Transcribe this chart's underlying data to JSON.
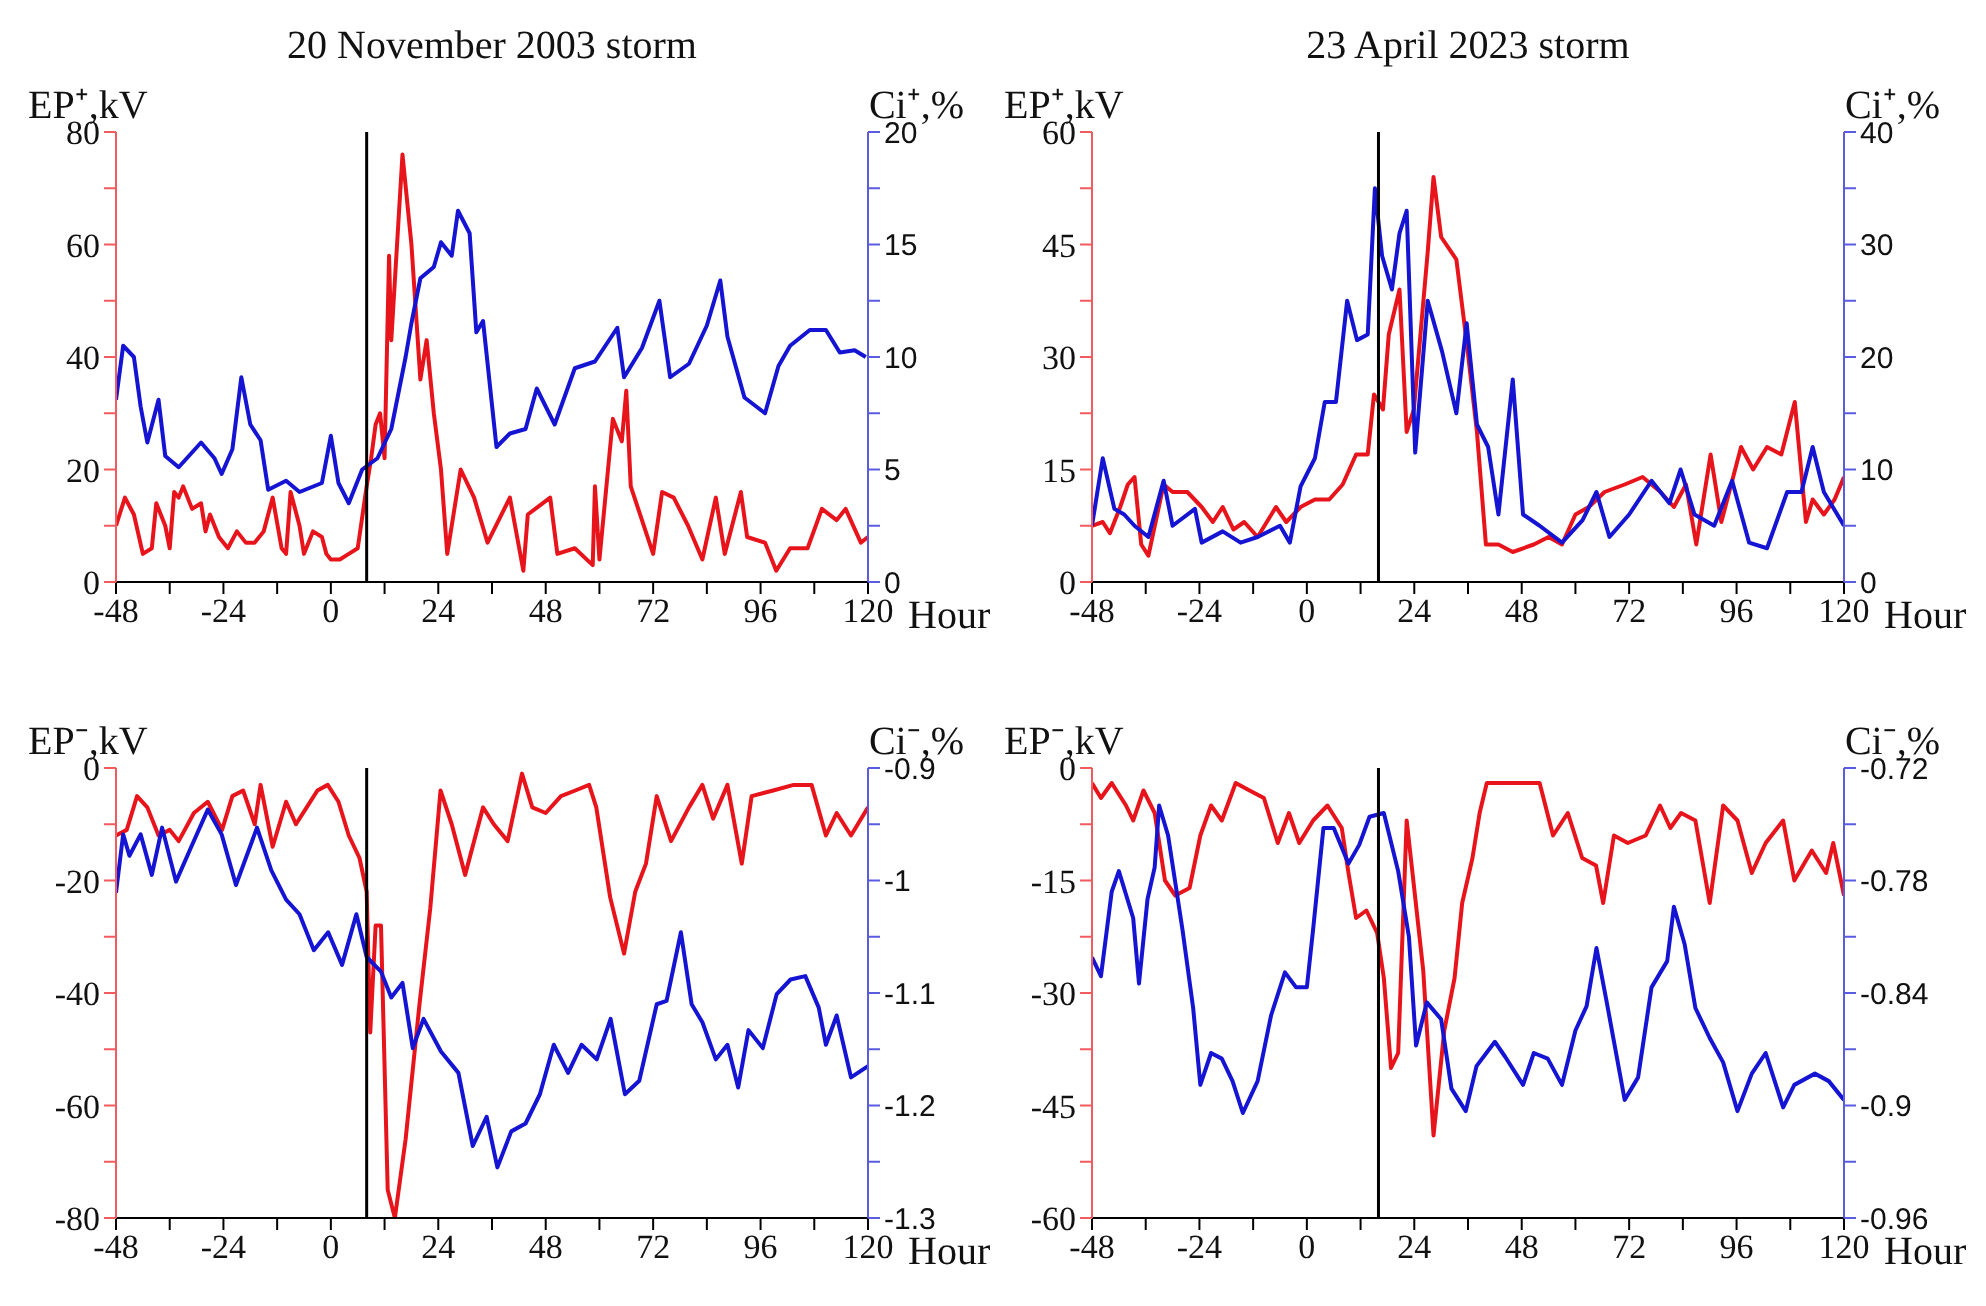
{
  "chart_data": [
    {
      "type": "line",
      "title": "20 November 2003 storm",
      "xlabel": "Hour",
      "ylabel": "EP⁺,kV",
      "y2label": "Ci⁺,%",
      "xlim": [
        -48,
        120
      ],
      "xticks": [
        -48,
        {
          "value": -36,
          "label": null
        },
        -24,
        {
          "value": -12,
          "label": null
        },
        0,
        {
          "value": 12,
          "label": null
        },
        24,
        {
          "value": 36,
          "label": null
        },
        48,
        {
          "value": 60,
          "label": null
        },
        72,
        {
          "value": 84,
          "label": null
        },
        96,
        {
          "value": 108,
          "label": null
        },
        120
      ],
      "ylim": [
        0,
        80
      ],
      "yticks": [
        0,
        {
          "value": 10,
          "label": null
        },
        20,
        {
          "value": 30,
          "label": null
        },
        40,
        {
          "value": 50,
          "label": null
        },
        60,
        {
          "value": 70,
          "label": null
        },
        80
      ],
      "y2lim": [
        0,
        20
      ],
      "y2ticks": [
        0,
        {
          "value": 2.5,
          "label": null
        },
        5,
        {
          "value": 7.5,
          "label": null
        },
        10,
        {
          "value": 12.5,
          "label": null
        },
        15,
        {
          "value": 17.5,
          "label": null
        },
        20
      ],
      "ref_lines": [
        {
          "axis": "x",
          "value": 8,
          "color": "#000000"
        }
      ],
      "series": [
        {
          "color": "#e8141b",
          "x": [
            -48,
            -46,
            -44,
            -42,
            -40,
            -39,
            -37,
            -36,
            -35,
            -34,
            -33,
            -31,
            -29,
            -28,
            -27,
            -25,
            -23,
            -21,
            -19,
            -17,
            -15,
            -13,
            -11,
            -10,
            -9,
            -7,
            -6,
            -4,
            -2,
            -1,
            0,
            2,
            4,
            6,
            8,
            9,
            10,
            11,
            12,
            13,
            13.5,
            16,
            18,
            20,
            21.4,
            23,
            24.6,
            26,
            29,
            32,
            35,
            40,
            43,
            44,
            49,
            50.6,
            54.5,
            58.5,
            59,
            60,
            63,
            65,
            66,
            67,
            72,
            74,
            76.6,
            79.8,
            83,
            86,
            88,
            91.6,
            93,
            97,
            99.5,
            102.6,
            106.5,
            109.7,
            113,
            115,
            118.4,
            120
          ],
          "values": [
            10,
            15,
            12,
            5,
            6,
            14,
            10,
            6,
            16,
            15,
            17,
            13,
            14,
            9,
            12,
            8,
            6,
            9,
            7,
            7,
            9,
            15,
            6,
            5,
            16,
            10,
            5,
            9,
            8,
            5,
            4,
            4,
            5,
            6,
            17,
            22,
            28,
            30,
            22,
            58,
            43,
            76,
            60,
            36,
            43,
            30,
            20,
            5,
            20,
            15,
            7,
            15,
            2,
            12,
            15,
            5,
            6,
            3,
            17,
            4,
            29,
            25,
            34,
            17,
            5,
            16,
            15,
            10,
            4,
            15,
            5,
            16,
            8,
            7,
            2,
            6,
            6,
            13,
            11,
            13,
            7,
            8
          ]
        },
        {
          "color": "#1414d2",
          "axis": "y2",
          "x": [
            -48,
            -46.4,
            -44,
            -42.5,
            -41,
            -38.5,
            -37,
            -34,
            -29,
            -26,
            -24.4,
            -22,
            -20,
            -18,
            -15.7,
            -14,
            -10,
            -7,
            -2,
            0,
            1.7,
            4,
            7,
            10.4,
            13.5,
            16.7,
            18,
            20,
            23,
            24.6,
            27,
            28.4,
            31,
            32.5,
            34,
            37,
            40,
            43.5,
            46,
            50,
            54.5,
            59,
            64,
            65.5,
            69.5,
            73.4,
            75.8,
            80,
            84,
            87,
            88.6,
            92.4,
            97,
            100,
            102.6,
            107,
            110.6,
            113.7,
            117,
            119.5
          ],
          "values": [
            8.1,
            10.5,
            10,
            7.8,
            6.2,
            8.1,
            5.6,
            5.1,
            6.2,
            5.5,
            4.8,
            5.9,
            9.1,
            7,
            6.3,
            4.1,
            4.5,
            4,
            4.4,
            6.5,
            4.4,
            3.5,
            5,
            5.5,
            6.8,
            10,
            11.5,
            13.5,
            14,
            15.1,
            14.5,
            16.5,
            15.5,
            11.1,
            11.6,
            6,
            6.6,
            6.8,
            8.6,
            7,
            9.5,
            9.8,
            11.3,
            9.1,
            10.4,
            12.5,
            9.1,
            9.7,
            11.4,
            13.4,
            10.9,
            8.2,
            7.5,
            9.6,
            10.5,
            11.2,
            11.2,
            10.2,
            10.3,
            10
          ]
        }
      ]
    },
    {
      "type": "line",
      "title": "23 April 2023 storm",
      "xlabel": "Hour",
      "ylabel": "EP⁺,kV",
      "y2label": "Ci⁺,%",
      "xlim": [
        -48,
        120
      ],
      "xticks": [
        -48,
        {
          "value": -36,
          "label": null
        },
        -24,
        {
          "value": -12,
          "label": null
        },
        0,
        {
          "value": 12,
          "label": null
        },
        24,
        {
          "value": 36,
          "label": null
        },
        48,
        {
          "value": 60,
          "label": null
        },
        72,
        {
          "value": 84,
          "label": null
        },
        96,
        {
          "value": 108,
          "label": null
        },
        120
      ],
      "ylim": [
        0,
        60
      ],
      "yticks": [
        0,
        {
          "value": 7.5,
          "label": null
        },
        15,
        {
          "value": 22.5,
          "label": null
        },
        30,
        {
          "value": 37.5,
          "label": null
        },
        45,
        {
          "value": 52.5,
          "label": null
        },
        60
      ],
      "y2lim": [
        0,
        40
      ],
      "y2ticks": [
        0,
        {
          "value": 5,
          "label": null
        },
        10,
        {
          "value": 15,
          "label": null
        },
        20,
        {
          "value": 25,
          "label": null
        },
        30,
        {
          "value": 35,
          "label": null
        },
        40
      ],
      "ref_lines": [
        {
          "axis": "x",
          "value": 16,
          "color": "#000000"
        }
      ],
      "series": [
        {
          "color": "#e8141b",
          "x": [
            -48,
            -45.6,
            -44,
            -41.7,
            -40,
            -38.5,
            -37,
            -35.4,
            -32,
            -30,
            -26.7,
            -23.5,
            -21,
            -18.8,
            -16.4,
            -14,
            -11,
            -6.9,
            -4.6,
            -1.4,
            1.8,
            5,
            8,
            11,
            13.6,
            15,
            17,
            18.3,
            20.7,
            22.3,
            23.9,
            27,
            28.3,
            30,
            33.4,
            35.7,
            38,
            40,
            42.8,
            46,
            50.7,
            54,
            57,
            60,
            63,
            66.5,
            71,
            75,
            79,
            82,
            84.7,
            87,
            90.2,
            92.6,
            97,
            99.7,
            102.8,
            106,
            109,
            111.5,
            113,
            115.5,
            117.9,
            120
          ],
          "values": [
            7.5,
            8,
            6.5,
            10,
            13,
            14,
            5,
            3.5,
            13,
            12,
            12,
            10,
            8,
            10,
            7,
            8,
            6,
            10,
            8,
            10,
            11,
            11,
            13,
            17,
            17,
            25,
            23,
            33,
            39,
            20,
            23,
            44,
            54,
            46,
            43,
            32,
            20,
            5,
            5,
            4,
            5,
            6,
            5,
            9,
            10,
            12,
            13,
            14,
            12,
            10,
            13,
            5,
            17,
            8,
            18,
            15,
            18,
            17,
            24,
            8,
            11,
            9,
            11,
            14
          ]
        },
        {
          "color": "#1414d2",
          "axis": "y2",
          "x": [
            -48,
            -45.6,
            -43,
            -40.8,
            -38.5,
            -35.4,
            -32,
            -30,
            -25,
            -23.5,
            -18.8,
            -14.8,
            -11,
            -6,
            -3.8,
            -1.4,
            1.8,
            4,
            6.5,
            9,
            11.2,
            13.6,
            15.2,
            16.8,
            19,
            20.7,
            22.3,
            24.2,
            27,
            30.2,
            33.4,
            35.7,
            38,
            40.5,
            42.8,
            46,
            48.3,
            52,
            57,
            61.6,
            64.7,
            67.6,
            72,
            77,
            81,
            83.5,
            86.6,
            91,
            95,
            98.8,
            102.8,
            107.3,
            110.5,
            113,
            115.5,
            120
          ],
          "values": [
            5,
            11,
            6.5,
            6,
            5,
            4,
            9,
            5,
            6.5,
            3.5,
            4.5,
            3.5,
            4,
            5,
            3.5,
            8.5,
            11,
            16,
            16,
            25,
            21.5,
            22,
            35,
            29,
            26,
            31,
            33,
            11.5,
            25,
            20.5,
            15,
            23,
            14,
            12,
            6,
            18,
            6,
            5,
            3.5,
            5.5,
            8,
            4,
            6,
            9,
            7,
            10,
            6,
            5,
            9,
            3.5,
            3,
            8,
            8,
            12,
            8,
            5
          ]
        }
      ]
    },
    {
      "type": "line",
      "xlabel": "Hour",
      "ylabel": "EP⁻,kV",
      "y2label": "Ci⁻,%",
      "xlim": [
        -48,
        120
      ],
      "xticks": [
        -48,
        {
          "value": -36,
          "label": null
        },
        -24,
        {
          "value": -12,
          "label": null
        },
        0,
        {
          "value": 12,
          "label": null
        },
        24,
        {
          "value": 36,
          "label": null
        },
        48,
        {
          "value": 60,
          "label": null
        },
        72,
        {
          "value": 84,
          "label": null
        },
        96,
        {
          "value": 108,
          "label": null
        },
        120
      ],
      "ylim": [
        -80,
        0
      ],
      "yticks": [
        -80,
        {
          "value": -70,
          "label": null
        },
        -60,
        {
          "value": -50,
          "label": null
        },
        -40,
        {
          "value": -30,
          "label": null
        },
        -20,
        {
          "value": -10,
          "label": null
        },
        0
      ],
      "y2lim": [
        -1.3,
        -0.9
      ],
      "y2ticks": [
        -1.3,
        {
          "value": -1.25,
          "label": null
        },
        -1.2,
        {
          "value": -1.15,
          "label": null
        },
        -1.1,
        {
          "value": -1.05,
          "label": null
        },
        -1,
        {
          "value": -0.95,
          "label": null
        },
        -0.9
      ],
      "ref_lines": [
        {
          "axis": "x",
          "value": 8,
          "color": "#000000"
        }
      ],
      "series": [
        {
          "color": "#e8141b",
          "x": [
            -48,
            -45.6,
            -43.3,
            -41,
            -38.5,
            -36,
            -34,
            -30.6,
            -27.5,
            -24.3,
            -22,
            -19.6,
            -17,
            -15.7,
            -13,
            -10,
            -7.8,
            -5.4,
            -3,
            -0.7,
            1.7,
            4,
            6.4,
            8,
            8.8,
            10,
            11.2,
            12.7,
            14.3,
            16.7,
            19.8,
            22.2,
            24.5,
            27,
            30,
            34,
            36.4,
            39.5,
            42.7,
            45,
            48,
            51.4,
            54.6,
            57.7,
            59.3,
            62.4,
            65.5,
            68,
            70.4,
            72.8,
            76,
            80,
            83,
            85.4,
            88.6,
            91.8,
            94,
            98.8,
            103.4,
            107.4,
            110.6,
            113,
            116.2,
            120
          ],
          "values": [
            -12,
            -11,
            -5,
            -7,
            -12,
            -11,
            -13,
            -8,
            -6,
            -11,
            -5,
            -4,
            -10,
            -3,
            -14,
            -6,
            -10,
            -7,
            -4,
            -3,
            -6,
            -12,
            -16,
            -22,
            -47,
            -28,
            -28,
            -75,
            -80,
            -66,
            -42,
            -25,
            -4,
            -10,
            -19,
            -7,
            -10,
            -13,
            -1,
            -7,
            -8,
            -5,
            -4,
            -3,
            -7,
            -23,
            -33,
            -22,
            -17,
            -5,
            -13,
            -7,
            -3,
            -9,
            -3,
            -17,
            -5,
            -4,
            -3,
            -3,
            -12,
            -8,
            -12,
            -7
          ]
        },
        {
          "color": "#1414d2",
          "axis": "y2",
          "x": [
            -48,
            -46.4,
            -45,
            -42.5,
            -40,
            -37.7,
            -34.6,
            -31.4,
            -27.5,
            -24.4,
            -21.2,
            -16.5,
            -13.3,
            -10,
            -7,
            -3.8,
            -0.6,
            2.5,
            5.7,
            8,
            11.2,
            13.5,
            16,
            18.3,
            20.7,
            24.6,
            28.5,
            31.7,
            34.8,
            37.2,
            40.3,
            43.5,
            46.7,
            49.8,
            53,
            56,
            59.4,
            62.5,
            65.7,
            68.9,
            72.8,
            75,
            78.2,
            80.6,
            83,
            86,
            88.6,
            91,
            93.3,
            96.5,
            99.6,
            102.7,
            106,
            109,
            110.6,
            113,
            116.2,
            120
          ],
          "values": [
            -1.011,
            -0.959,
            -0.978,
            -0.959,
            -0.995,
            -0.953,
            -1.001,
            -0.972,
            -0.937,
            -0.959,
            -1.004,
            -0.953,
            -0.991,
            -1.017,
            -1.03,
            -1.062,
            -1.046,
            -1.075,
            -1.03,
            -1.068,
            -1.081,
            -1.104,
            -1.091,
            -1.149,
            -1.123,
            -1.152,
            -1.171,
            -1.236,
            -1.21,
            -1.255,
            -1.223,
            -1.216,
            -1.19,
            -1.146,
            -1.171,
            -1.146,
            -1.159,
            -1.123,
            -1.19,
            -1.178,
            -1.11,
            -1.107,
            -1.046,
            -1.11,
            -1.126,
            -1.159,
            -1.146,
            -1.184,
            -1.133,
            -1.149,
            -1.101,
            -1.088,
            -1.085,
            -1.113,
            -1.146,
            -1.12,
            -1.175,
            -1.165
          ]
        }
      ]
    },
    {
      "type": "line",
      "xlabel": "Hour",
      "ylabel": "EP⁻,kV",
      "y2label": "Ci⁻,%",
      "xlim": [
        -48,
        120
      ],
      "xticks": [
        -48,
        {
          "value": -36,
          "label": null
        },
        -24,
        {
          "value": -12,
          "label": null
        },
        0,
        {
          "value": 12,
          "label": null
        },
        24,
        {
          "value": 36,
          "label": null
        },
        48,
        {
          "value": 60,
          "label": null
        },
        72,
        {
          "value": 84,
          "label": null
        },
        96,
        {
          "value": 108,
          "label": null
        },
        120
      ],
      "ylim": [
        -60,
        0
      ],
      "yticks": [
        -60,
        {
          "value": -52.5,
          "label": null
        },
        -45,
        {
          "value": -37.5,
          "label": null
        },
        -30,
        {
          "value": -22.5,
          "label": null
        },
        -15,
        {
          "value": -7.5,
          "label": null
        },
        0
      ],
      "y2lim": [
        -0.96,
        -0.72
      ],
      "y2ticks": [
        -0.96,
        {
          "value": -0.93,
          "label": null
        },
        -0.9,
        {
          "value": -0.87,
          "label": null
        },
        -0.84,
        {
          "value": -0.81,
          "label": null
        },
        -0.78,
        {
          "value": -0.75,
          "label": null
        },
        -0.72
      ],
      "ref_lines": [
        {
          "axis": "x",
          "value": 16,
          "color": "#000000"
        }
      ],
      "series": [
        {
          "color": "#e8141b",
          "x": [
            -48,
            -46,
            -43.6,
            -40.4,
            -38.8,
            -36.5,
            -34,
            -31.7,
            -29.4,
            -26.2,
            -23.8,
            -21.4,
            -19,
            -15.9,
            -12.8,
            -9.6,
            -6.5,
            -4,
            -1.7,
            1.4,
            4.6,
            7.8,
            9.3,
            11,
            13.3,
            15.7,
            17.2,
            18.8,
            20.4,
            22.3,
            23.6,
            26,
            28.3,
            30.7,
            33,
            34.7,
            37,
            38.6,
            40.2,
            44,
            48,
            52,
            55,
            58.3,
            61.5,
            64.6,
            66.2,
            68.6,
            71.7,
            75.7,
            78.9,
            81.2,
            83.6,
            86.8,
            90,
            93,
            96.2,
            99.4,
            102.5,
            106.4,
            108.9,
            112.8,
            116,
            117.6,
            120
          ],
          "values": [
            -2,
            -4,
            -2,
            -5,
            -7,
            -3,
            -6,
            -15,
            -17,
            -16,
            -9,
            -5,
            -7,
            -2,
            -3,
            -4,
            -10,
            -6,
            -10,
            -7,
            -5,
            -8,
            -14,
            -20,
            -19,
            -22,
            -28,
            -40,
            -38,
            -7,
            -14,
            -27,
            -49,
            -35,
            -28,
            -18,
            -12,
            -6,
            -2,
            -2,
            -2,
            -2,
            -9,
            -6,
            -12,
            -13,
            -18,
            -9,
            -10,
            -9,
            -5,
            -8,
            -6,
            -7,
            -18,
            -5,
            -7,
            -14,
            -10,
            -7,
            -15,
            -11,
            -14,
            -10,
            -17
          ]
        },
        {
          "color": "#1414d2",
          "axis": "y2",
          "x": [
            -48,
            -46,
            -43.6,
            -42,
            -38.8,
            -37.5,
            -35.6,
            -34,
            -33,
            -31,
            -27.8,
            -25.4,
            -23.8,
            -21.4,
            -19,
            -16.6,
            -14.3,
            -11,
            -8,
            -4.9,
            -2.4,
            0,
            1.4,
            3.7,
            6,
            9.3,
            11.7,
            14,
            17.2,
            20.4,
            22.8,
            24.4,
            26.8,
            30,
            32.3,
            35.5,
            37.9,
            42,
            44.3,
            48.3,
            50.7,
            53.8,
            57,
            60,
            62.5,
            64.7,
            67,
            71,
            74,
            77,
            80.5,
            82,
            84.4,
            86.8,
            90,
            93,
            96.2,
            99.4,
            102.5,
            106.4,
            108.9,
            113.5,
            116.6,
            120
          ],
          "values": [
            -0.821,
            -0.831,
            -0.786,
            -0.775,
            -0.8,
            -0.835,
            -0.79,
            -0.773,
            -0.74,
            -0.756,
            -0.806,
            -0.848,
            -0.889,
            -0.872,
            -0.875,
            -0.887,
            -0.904,
            -0.887,
            -0.852,
            -0.829,
            -0.837,
            -0.837,
            -0.806,
            -0.752,
            -0.752,
            -0.771,
            -0.761,
            -0.746,
            -0.744,
            -0.775,
            -0.81,
            -0.868,
            -0.845,
            -0.854,
            -0.891,
            -0.903,
            -0.879,
            -0.866,
            -0.874,
            -0.889,
            -0.872,
            -0.875,
            -0.889,
            -0.86,
            -0.847,
            -0.816,
            -0.845,
            -0.897,
            -0.885,
            -0.837,
            -0.823,
            -0.794,
            -0.814,
            -0.848,
            -0.864,
            -0.877,
            -0.903,
            -0.883,
            -0.872,
            -0.901,
            -0.889,
            -0.883,
            -0.887,
            -0.897
          ]
        }
      ]
    }
  ]
}
